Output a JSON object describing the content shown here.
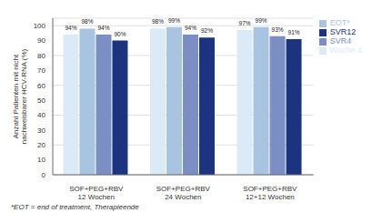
{
  "chart_data": {
    "type": "bar",
    "categories": [
      "SOF+PEG+RBV\n12 Wochen",
      "SOF+PEG+RBV\n24 Wochen",
      "SOF+PEG+RBV\n12+12 Wochen"
    ],
    "series": [
      {
        "name": "Woche 4",
        "color": "#daeaf7",
        "values": [
          94,
          98,
          97
        ],
        "value_labels": [
          "94%",
          "98%",
          "97%"
        ]
      },
      {
        "name": "EOT*",
        "color": "#a8c4e0",
        "values": [
          98,
          99,
          99
        ],
        "value_labels": [
          "98%",
          "99%",
          "99%"
        ]
      },
      {
        "name": "SVR4",
        "color": "#7b8fc4",
        "values": [
          94,
          94,
          93
        ],
        "value_labels": [
          "94%",
          "94%",
          "93%"
        ]
      },
      {
        "name": "SVR12",
        "color": "#1c3380",
        "values": [
          90,
          92,
          91
        ],
        "value_labels": [
          "90%",
          "92%",
          "91%"
        ]
      }
    ],
    "ylabel": "Anzahl Patienten mit nicht\nnachweisbarer HCV-RNA (%)",
    "ylim": [
      0,
      105
    ],
    "yticks": [
      0,
      10,
      20,
      30,
      40,
      50,
      60,
      70,
      80,
      90,
      100
    ],
    "grid": true,
    "legend": "right",
    "data_labels": true,
    "annotations": [
      "*EOT = end of treatment, Therapieende"
    ]
  }
}
